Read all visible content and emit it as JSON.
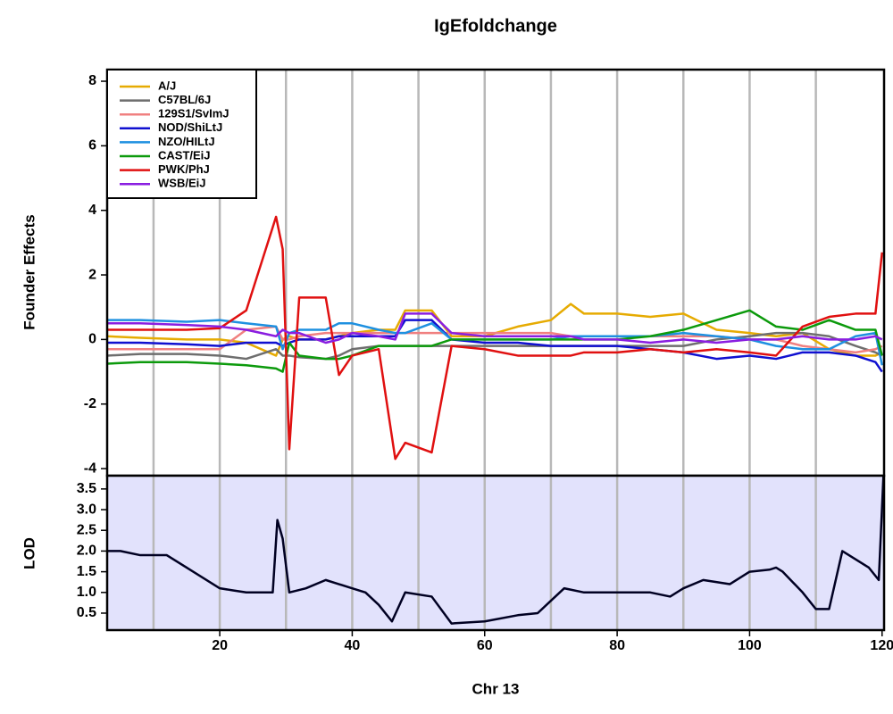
{
  "chart_data": [
    {
      "type": "line",
      "title": "IgEfoldchange",
      "ylabel": "Founder Effects",
      "x": [
        3,
        8,
        15,
        20,
        24,
        28.5,
        29.5,
        30.5,
        32,
        36,
        38,
        40,
        44,
        46.5,
        48,
        52,
        55,
        60,
        65,
        70,
        73,
        75,
        80,
        85,
        90,
        95,
        100,
        104,
        108,
        112,
        116,
        119,
        120
      ],
      "series": [
        {
          "name": "A/J",
          "color": "#e6ab02",
          "values": [
            0.1,
            0.05,
            0.0,
            0.0,
            -0.1,
            -0.5,
            0.0,
            0.1,
            0.0,
            0.0,
            0.1,
            0.2,
            0.3,
            0.3,
            0.9,
            0.9,
            0.1,
            0.1,
            0.4,
            0.6,
            1.1,
            0.8,
            0.8,
            0.7,
            0.8,
            0.3,
            0.2,
            0.1,
            0.2,
            -0.3,
            -0.5,
            -0.5,
            -0.4
          ]
        },
        {
          "name": "C57BL/6J",
          "color": "#6e6e6e",
          "values": [
            -0.5,
            -0.45,
            -0.45,
            -0.5,
            -0.6,
            -0.3,
            -0.5,
            -0.5,
            -0.55,
            -0.6,
            -0.5,
            -0.3,
            -0.2,
            -0.2,
            -0.2,
            -0.2,
            -0.2,
            -0.2,
            -0.2,
            -0.2,
            -0.2,
            -0.2,
            -0.2,
            -0.2,
            -0.2,
            0.0,
            0.1,
            0.2,
            0.2,
            0.1,
            -0.2,
            -0.4,
            -0.5
          ]
        },
        {
          "name": "129S1/SvImJ",
          "color": "#f08080",
          "values": [
            -0.3,
            -0.3,
            -0.3,
            -0.3,
            0.3,
            0.4,
            0.0,
            0.0,
            0.1,
            0.2,
            0.2,
            0.2,
            0.2,
            0.2,
            0.2,
            0.2,
            0.2,
            0.2,
            0.2,
            0.2,
            0.1,
            0.1,
            0.1,
            0.1,
            0.1,
            0.1,
            0.0,
            0.0,
            -0.2,
            -0.3,
            -0.4,
            -0.3,
            -0.2
          ]
        },
        {
          "name": "NOD/ShiLtJ",
          "color": "#1010d0",
          "values": [
            -0.1,
            -0.1,
            -0.15,
            -0.2,
            -0.1,
            -0.1,
            -0.2,
            -0.1,
            0.0,
            0.0,
            0.1,
            0.1,
            0.1,
            0.1,
            0.6,
            0.6,
            0.0,
            -0.1,
            -0.1,
            -0.2,
            -0.2,
            -0.2,
            -0.2,
            -0.3,
            -0.4,
            -0.6,
            -0.5,
            -0.6,
            -0.4,
            -0.4,
            -0.5,
            -0.7,
            -1.0
          ]
        },
        {
          "name": "NZO/HILtJ",
          "color": "#1e90e0",
          "values": [
            0.6,
            0.6,
            0.55,
            0.6,
            0.5,
            0.4,
            -0.3,
            0.2,
            0.3,
            0.3,
            0.5,
            0.5,
            0.3,
            0.2,
            0.2,
            0.5,
            0.0,
            0.0,
            0.0,
            0.0,
            0.1,
            0.1,
            0.1,
            0.1,
            0.2,
            0.1,
            0.0,
            -0.2,
            -0.3,
            -0.3,
            0.1,
            0.2,
            -0.8
          ]
        },
        {
          "name": "CAST/EiJ",
          "color": "#0c9a0c",
          "values": [
            -0.75,
            -0.7,
            -0.7,
            -0.75,
            -0.8,
            -0.9,
            -1.0,
            -0.1,
            -0.5,
            -0.6,
            -0.6,
            -0.5,
            -0.2,
            -0.2,
            -0.2,
            -0.2,
            0.0,
            0.0,
            0.0,
            0.0,
            0.0,
            0.0,
            0.0,
            0.1,
            0.3,
            0.6,
            0.9,
            0.4,
            0.3,
            0.6,
            0.3,
            0.3,
            -0.5
          ]
        },
        {
          "name": "PWK/PhJ",
          "color": "#e01010",
          "values": [
            0.3,
            0.3,
            0.3,
            0.35,
            0.9,
            3.8,
            2.8,
            -3.4,
            1.3,
            1.3,
            -1.1,
            -0.5,
            -0.3,
            -3.7,
            -3.2,
            -3.5,
            -0.2,
            -0.3,
            -0.5,
            -0.5,
            -0.5,
            -0.4,
            -0.4,
            -0.3,
            -0.4,
            -0.3,
            -0.4,
            -0.5,
            0.4,
            0.7,
            0.8,
            0.8,
            2.7
          ]
        },
        {
          "name": "WSB/EiJ",
          "color": "#8a1ee0",
          "values": [
            0.5,
            0.5,
            0.45,
            0.4,
            0.3,
            0.1,
            0.3,
            0.2,
            0.2,
            -0.1,
            0.0,
            0.2,
            0.1,
            0.0,
            0.8,
            0.8,
            0.2,
            0.1,
            0.1,
            0.1,
            0.1,
            0.0,
            0.0,
            -0.1,
            0.0,
            -0.1,
            0.0,
            0.0,
            0.1,
            0.0,
            0.0,
            0.1,
            0.0
          ]
        }
      ],
      "xlim": [
        3,
        120.3
      ],
      "xgrid": [
        10,
        20,
        30,
        40,
        50,
        60,
        70,
        80,
        90,
        100,
        110
      ],
      "ylim": [
        -4.22,
        8.36
      ],
      "yticks": [
        -4,
        -2,
        0,
        2,
        4,
        6,
        8
      ],
      "legend": "topleft"
    },
    {
      "type": "line",
      "ylabel": "LOD",
      "xlabel": "Chr 13",
      "color": "#000022",
      "background": "#e2e2fc",
      "x": [
        3,
        5,
        8,
        12,
        15,
        20,
        22,
        24,
        26,
        28,
        28.7,
        29.5,
        30.5,
        33,
        36,
        38,
        40,
        42,
        44,
        46,
        48,
        52,
        55,
        60,
        65,
        68,
        70,
        72,
        75,
        80,
        85,
        88,
        90,
        93,
        97,
        100,
        103,
        104,
        105,
        108,
        110,
        112,
        114,
        116,
        118,
        119.5,
        120.2
      ],
      "values": [
        2.0,
        2.0,
        1.9,
        1.9,
        1.6,
        1.1,
        1.05,
        1.0,
        1.0,
        1.0,
        2.75,
        2.3,
        1.0,
        1.1,
        1.3,
        1.2,
        1.1,
        1.0,
        0.7,
        0.3,
        1.0,
        0.9,
        0.25,
        0.3,
        0.45,
        0.5,
        0.8,
        1.1,
        1.0,
        1.0,
        1.0,
        0.9,
        1.1,
        1.3,
        1.2,
        1.5,
        1.55,
        1.6,
        1.5,
        1.0,
        0.6,
        0.6,
        2.0,
        1.8,
        1.6,
        1.3,
        3.8
      ],
      "xlim": [
        3,
        120.3
      ],
      "xticks": [
        20,
        40,
        60,
        80,
        100,
        120
      ],
      "xgrid": [
        10,
        20,
        30,
        40,
        50,
        60,
        70,
        80,
        90,
        100,
        110
      ],
      "ylim": [
        0.09,
        3.82
      ],
      "yticks": [
        0.5,
        {
          "value": 1,
          "label": "1.0"
        },
        1.5,
        {
          "value": 2,
          "label": "2.0"
        },
        2.5,
        {
          "value": 3,
          "label": "3.0"
        },
        3.5
      ]
    }
  ]
}
